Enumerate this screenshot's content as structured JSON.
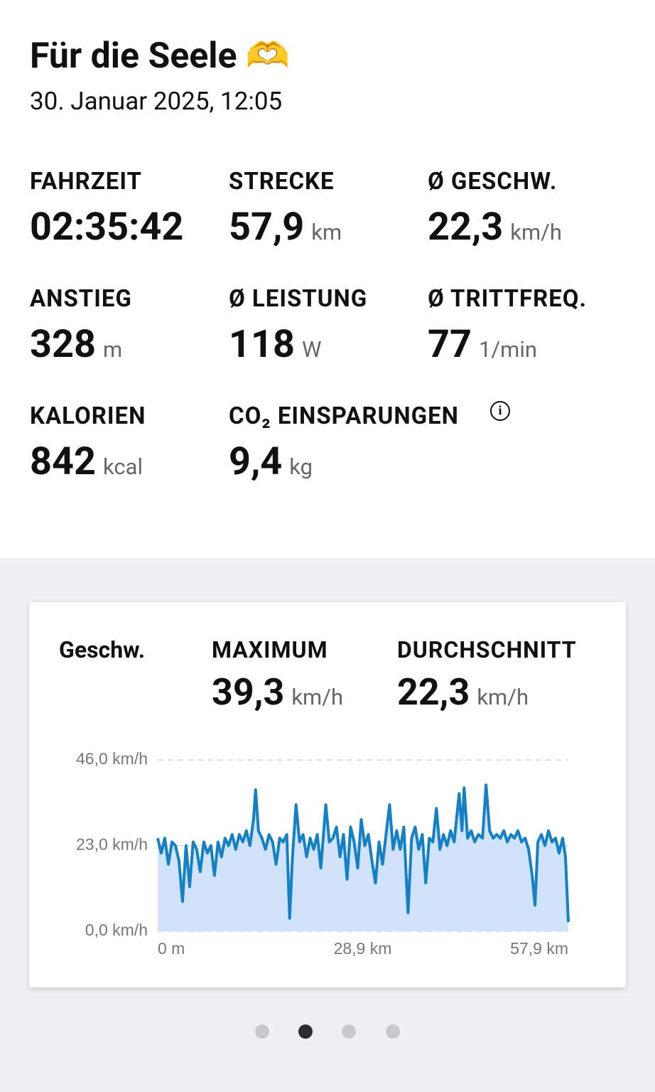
{
  "header": {
    "title": "Für die Seele 🫶",
    "date": "30. Januar 2025, 12:05"
  },
  "stats": [
    {
      "label": "FAHRZEIT",
      "value": "02:35:42"
    },
    {
      "label": "STRECKE",
      "value": "57,9",
      "unit": "km"
    },
    {
      "label": "Ø GESCHW.",
      "value": "22,3",
      "unit": "km/h"
    },
    {
      "label": "ANSTIEG",
      "value": "328",
      "unit": "m"
    },
    {
      "label": "Ø LEISTUNG",
      "value": "118",
      "unit": "W"
    },
    {
      "label": "Ø TRITTFREQ.",
      "value": "77",
      "unit": "1/min"
    },
    {
      "label": "KALORIEN",
      "value": "842",
      "unit": "kcal"
    },
    {
      "label": "CO₂ EINSPARUNGEN",
      "value": "9,4",
      "unit": "kg"
    }
  ],
  "speed_card": {
    "label": "Geschw.",
    "summary": [
      {
        "label": "MAXIMUM",
        "value": "39,3",
        "unit": "km/h"
      },
      {
        "label": "DURCHSCHNITT",
        "value": "22,3",
        "unit": "km/h"
      }
    ]
  },
  "chart_data": {
    "type": "area",
    "color": "#1580c3",
    "fill": "#d0e3fa",
    "grid": true,
    "xlim": [
      0,
      57.9
    ],
    "ylim": [
      0,
      46
    ],
    "xticks": [
      {
        "value": 0,
        "label": "0 m"
      },
      {
        "value": 28.9,
        "label": "28,9 km"
      },
      {
        "value": 57.9,
        "label": "57,9 km"
      }
    ],
    "yticks": [
      {
        "value": 0,
        "label": "0,0 km/h"
      },
      {
        "value": 23,
        "label": "23,0 km/h"
      },
      {
        "value": 46,
        "label": "46,0 km/h"
      }
    ],
    "x": [
      0,
      0.5,
      1,
      1.5,
      2,
      2.5,
      3,
      3.5,
      4,
      4.5,
      5,
      5.5,
      6,
      6.5,
      7,
      7.5,
      8,
      8.5,
      9,
      9.5,
      10,
      10.5,
      11,
      11.5,
      12,
      12.5,
      13,
      13.5,
      13.8,
      14.2,
      14.7,
      15.2,
      15.7,
      16.2,
      16.7,
      17.2,
      17.7,
      18.2,
      18.6,
      19,
      19.5,
      20,
      20.5,
      21,
      21.5,
      22,
      22.5,
      23,
      23.7,
      24.2,
      24.7,
      25.2,
      25.7,
      26.2,
      26.7,
      27.2,
      27.7,
      28.2,
      28.7,
      29.2,
      29.7,
      30.2,
      30.7,
      31.2,
      31.7,
      32.2,
      32.7,
      33.2,
      33.7,
      34.2,
      34.7,
      35.3,
      35.8,
      36.3,
      36.8,
      37.3,
      37.8,
      38.3,
      38.8,
      39.3,
      39.8,
      40.3,
      40.8,
      41.3,
      41.8,
      42.5,
      42.9,
      43.2,
      43.7,
      44.2,
      44.7,
      45.2,
      45.8,
      46.3,
      46.8,
      47.3,
      47.8,
      48.3,
      48.8,
      49.3,
      49.8,
      50.3,
      50.8,
      51.3,
      51.8,
      52.3,
      52.8,
      53.2,
      53.6,
      54.1,
      54.6,
      55.1,
      55.6,
      56.1,
      56.6,
      57.1,
      57.5,
      57.9
    ],
    "values": [
      25,
      21,
      25,
      18,
      24,
      23,
      19,
      8,
      23,
      12,
      24,
      22,
      16,
      24,
      21,
      23,
      15,
      24,
      20,
      25,
      23,
      26,
      22,
      26,
      24,
      27,
      23,
      30,
      38,
      27,
      25,
      22,
      26,
      24,
      18,
      25,
      24,
      26,
      3.5,
      20,
      34,
      24,
      26,
      20,
      25,
      22,
      26,
      17,
      34,
      24,
      25,
      28,
      20,
      26,
      14,
      28,
      24,
      17,
      30,
      23,
      26,
      19,
      13,
      24,
      18,
      26,
      34,
      22,
      27,
      22,
      28,
      5,
      25,
      28,
      22,
      26,
      13,
      25,
      24,
      33,
      22,
      26,
      23,
      27,
      24,
      37,
      27,
      38.5,
      25,
      27,
      24,
      26,
      25,
      39.3,
      27,
      25,
      26,
      25,
      27,
      24,
      26,
      25,
      27,
      24,
      25,
      22,
      15,
      7,
      24,
      26,
      23,
      27,
      24,
      25,
      21,
      25,
      20,
      2.5
    ]
  }
}
